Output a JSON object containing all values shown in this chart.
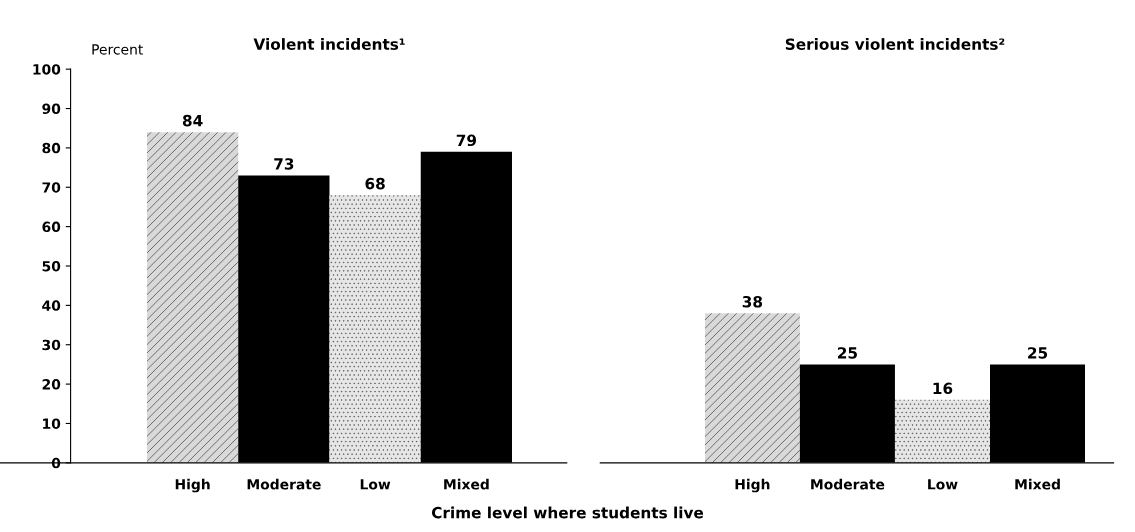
{
  "chart_data": [
    {
      "type": "bar",
      "title": "Violent incidents¹",
      "ylabel": "Percent",
      "categories": [
        "High",
        "Moderate",
        "Low",
        "Mixed"
      ],
      "values": [
        84,
        73,
        68,
        79
      ],
      "colors": [
        "#d9d9d9",
        "#000000",
        "#e6e6e6",
        "#000000"
      ],
      "ylim": [
        0,
        100
      ],
      "yticks": [
        0,
        10,
        20,
        30,
        40,
        50,
        60,
        70,
        80,
        90,
        100
      ],
      "data_labels": true,
      "grid": false,
      "legend": false,
      "annotations": [
        "Crime level where students live"
      ]
    },
    {
      "type": "bar",
      "title": "Serious violent incidents²",
      "categories": [
        "High",
        "Moderate",
        "Low",
        "Mixed"
      ],
      "values": [
        38,
        25,
        16,
        25
      ],
      "colors": [
        "#d9d9d9",
        "#000000",
        "#e6e6e6",
        "#000000"
      ],
      "ylim": [
        0,
        100
      ],
      "yticks": [
        0,
        10,
        20,
        30,
        40,
        50,
        60,
        70,
        80,
        90,
        100
      ],
      "tick_labels": "x",
      "data_labels": true,
      "grid": false,
      "legend": false
    }
  ]
}
